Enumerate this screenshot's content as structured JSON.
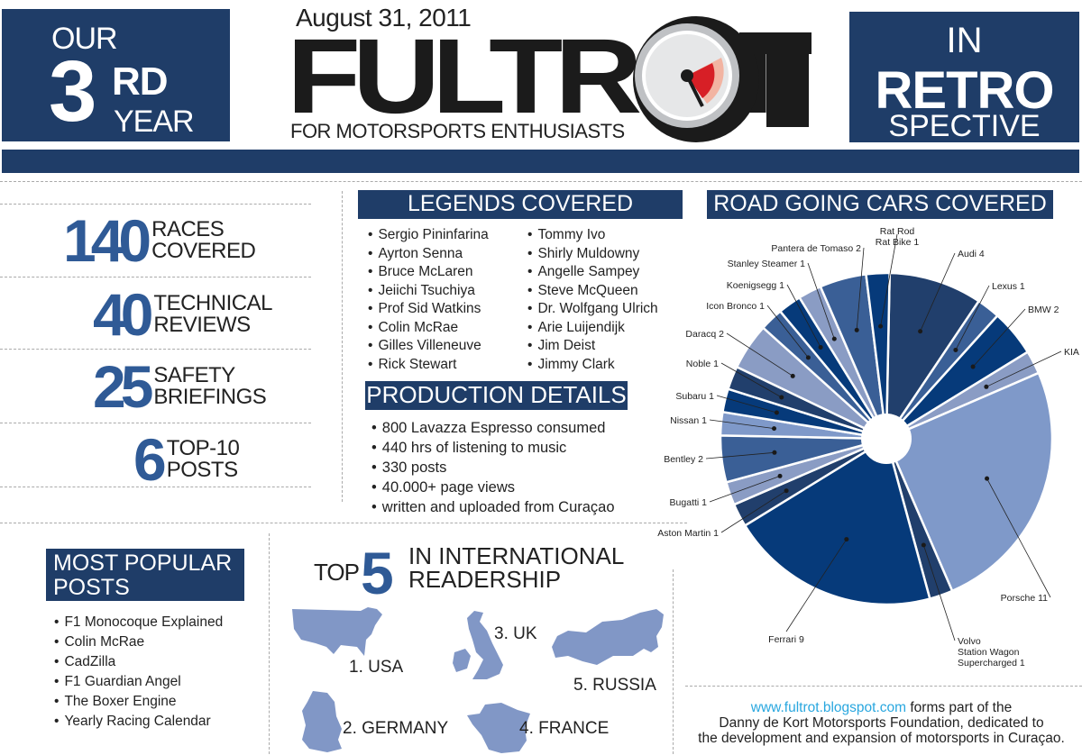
{
  "header": {
    "left_box": {
      "our": "OUR",
      "number": "3",
      "suffix": "RD",
      "year": "YEAR"
    },
    "date": "August 31, 2011",
    "logo": "FULTROT",
    "tagline": "FOR MOTORSPORTS ENTHUSIASTS",
    "right_box": {
      "in": "IN",
      "retro": "RETRO",
      "spective": "SPECTIVE"
    },
    "logo_dial_colors": {
      "rim": "#1b1b1b",
      "bezel": "#bfc1c4",
      "face": "#e6e7e8",
      "needle_red": "#d71f26",
      "needle_pink": "#f2b4a2"
    }
  },
  "stats": [
    {
      "number": "140",
      "line1": "RACES",
      "line2": "COVERED"
    },
    {
      "number": "40",
      "line1": "TECHNICAL",
      "line2": "REVIEWS"
    },
    {
      "number": "25",
      "line1": "SAFETY",
      "line2": "BRIEFINGS"
    },
    {
      "number": "6",
      "line1": "TOP-10",
      "line2": "POSTS"
    }
  ],
  "legends": {
    "title": "LEGENDS COVERED",
    "col1": [
      "Sergio Pininfarina",
      "Ayrton Senna",
      "Bruce McLaren",
      "Jeiichi Tsuchiya",
      "Prof Sid Watkins",
      "Colin McRae",
      "Gilles Villeneuve",
      "Rick Stewart"
    ],
    "col2": [
      "Tommy Ivo",
      "Shirly Muldowny",
      "Angelle Sampey",
      "Steve McQueen",
      "Dr. Wolfgang Ulrich",
      "Arie Luijendijk",
      "Jim Deist",
      "Jimmy Clark"
    ]
  },
  "production": {
    "title": "PRODUCTION DETAILS",
    "items": [
      "800 Lavazza Espresso consumed",
      "440 hrs of listening to music",
      "330 posts",
      "40.000+ page views",
      "written and uploaded from Curaçao"
    ]
  },
  "popular": {
    "title_line1": "MOST POPULAR",
    "title_line2": "POSTS",
    "items": [
      "F1 Monocoque Explained",
      "Colin McRae",
      "CadZilla",
      "F1 Guardian Angel",
      "The Boxer Engine",
      "Yearly Racing Calendar"
    ]
  },
  "readership": {
    "top": "TOP",
    "five": "5",
    "line1": "IN INTERNATIONAL",
    "line2": "READERSHIP",
    "countries": [
      {
        "rank_label": "1. USA",
        "icon": "usa-map-icon"
      },
      {
        "rank_label": "2. GERMANY",
        "icon": "germany-map-icon"
      },
      {
        "rank_label": "3. UK",
        "icon": "uk-map-icon"
      },
      {
        "rank_label": "4. FRANCE",
        "icon": "france-map-icon"
      },
      {
        "rank_label": "5. RUSSIA",
        "icon": "russia-map-icon"
      }
    ],
    "map_color": "#8197c6"
  },
  "footer": {
    "url": "www.fultrot.blogspot.com",
    "line1_rest": " forms part of the",
    "line2": "Danny de Kort Motorsports Foundation, dedicated to",
    "line3": "the development and expansion of motorsports in Curaçao."
  },
  "colors": {
    "navy": "#1f3d68",
    "stat_blue": "#2f5a96",
    "link": "#29a7df"
  },
  "chart_data": {
    "type": "pie",
    "title": "ROAD GOING CARS COVERED",
    "donut_hole": true,
    "start": "top, clockwise",
    "categories": [
      "Audi",
      "Lexus",
      "BMW",
      "KIA",
      "Porsche",
      "Volvo Station Wagon Supercharged",
      "Ferrari",
      "Aston Martin",
      "Bugatti",
      "Bentley",
      "Nissan",
      "Subaru",
      "Noble",
      "Daracq",
      "Icon Bronco",
      "Koenigsegg",
      "Stanley Steamer",
      "Pantera de Tomaso",
      "Rat Rod Rat Bike"
    ],
    "values": [
      4,
      1,
      2,
      1,
      11,
      1,
      9,
      1,
      1,
      2,
      1,
      1,
      1,
      2,
      1,
      1,
      1,
      2,
      1
    ],
    "labels": [
      "Audi 4",
      "Lexus 1",
      "BMW 2",
      "KIA 1",
      "Porsche 11",
      "Volvo|Station Wagon|Supercharged 1",
      "Ferrari 9",
      "Aston Martin 1",
      "Bugatti 1",
      "Bentley 2",
      "Nissan 1",
      "Subaru 1",
      "Noble 1",
      "Daracq 2",
      "Icon Bronco 1",
      "Koenigsegg 1",
      "Stanley Steamer 1",
      "Pantera de Tomaso 2",
      "Rat Rod|Rat Bike 1"
    ],
    "colors": [
      "#213f6c",
      "#3a5f96",
      "#063a7a",
      "#8a9cc4",
      "#7f99c9",
      "#213f6c",
      "#063a7a",
      "#213f6c",
      "#8a9cc4",
      "#3a5f96",
      "#7f99c9",
      "#063a7a",
      "#213f6c",
      "#8a9cc4",
      "#3a5f96",
      "#063a7a",
      "#8a9cc4",
      "#3a5f96",
      "#063a7a"
    ],
    "label_pos": [
      [
        1062,
        285
      ],
      [
        1100,
        321
      ],
      [
        1140,
        347
      ],
      [
        1180,
        394
      ],
      [
        1162,
        667
      ],
      [
        1062,
        715
      ],
      [
        872,
        713
      ],
      [
        797,
        595
      ],
      [
        784,
        561
      ],
      [
        780,
        513
      ],
      [
        784,
        470
      ],
      [
        792,
        443
      ],
      [
        797,
        407
      ],
      [
        803,
        374
      ],
      [
        848,
        343
      ],
      [
        870,
        320
      ],
      [
        893,
        296
      ],
      [
        955,
        279
      ],
      [
        995,
        272
      ]
    ],
    "label_anchor": [
      "start",
      "start",
      "start",
      "start",
      "end",
      "start",
      "middle",
      "end",
      "end",
      "end",
      "end",
      "end",
      "end",
      "end",
      "end",
      "end",
      "end",
      "end",
      "middle"
    ]
  }
}
